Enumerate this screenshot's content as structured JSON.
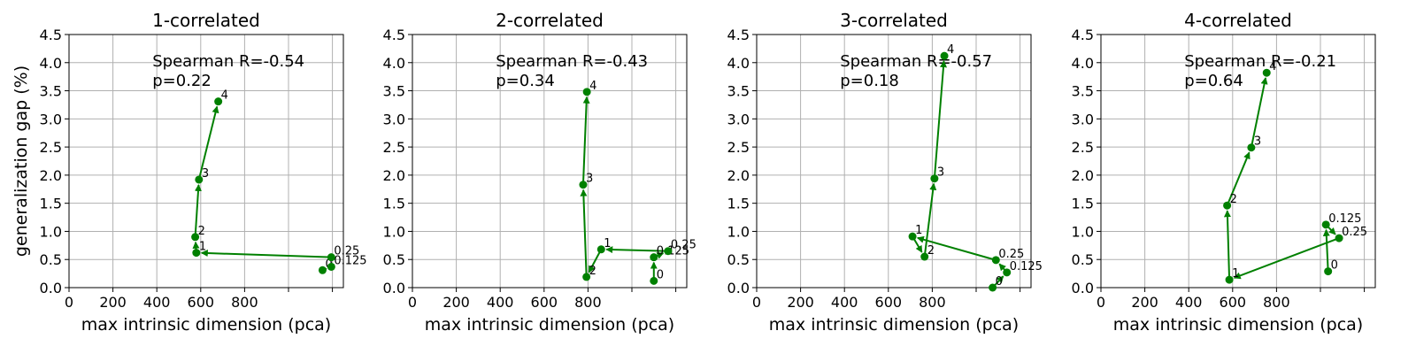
{
  "chart_data": [
    {
      "type": "line",
      "title": "1-correlated",
      "xlabel": "max intrinsic dimension (pca)",
      "ylabel": "generalization gap (%)",
      "xlim": [
        0,
        1250
      ],
      "ylim": [
        0,
        4.5
      ],
      "xticks": [
        0,
        200,
        400,
        600,
        800
      ],
      "yticks": [
        "0.0",
        "0.5",
        "1.0",
        "1.5",
        "2.0",
        "2.5",
        "3.0",
        "3.5",
        "4.0",
        "4.5"
      ],
      "grid": true,
      "color": "#008000",
      "annotation": [
        "Spearman R=-0.54",
        "p=0.22"
      ],
      "points": [
        {
          "label": "0",
          "x": 1155,
          "y": 0.31
        },
        {
          "label": "0.125",
          "x": 1195,
          "y": 0.37
        },
        {
          "label": "0.25",
          "x": 1195,
          "y": 0.54
        },
        {
          "label": "1",
          "x": 580,
          "y": 0.62
        },
        {
          "label": "2",
          "x": 575,
          "y": 0.9
        },
        {
          "label": "3",
          "x": 592,
          "y": 1.92
        },
        {
          "label": "4",
          "x": 680,
          "y": 3.31
        }
      ]
    },
    {
      "type": "line",
      "title": "2-correlated",
      "xlabel": "max intrinsic dimension (pca)",
      "ylabel": "",
      "xlim": [
        0,
        1250
      ],
      "ylim": [
        0,
        4.5
      ],
      "xticks": [
        0,
        200,
        400,
        600,
        800
      ],
      "yticks": [
        "0.0",
        "0.5",
        "1.0",
        "1.5",
        "2.0",
        "2.5",
        "3.0",
        "3.5",
        "4.0",
        "4.5"
      ],
      "grid": true,
      "color": "#008000",
      "annotation": [
        "Spearman R=-0.43",
        "p=0.34"
      ],
      "points": [
        {
          "label": "0",
          "x": 1100,
          "y": 0.12
        },
        {
          "label": "0.125",
          "x": 1100,
          "y": 0.54
        },
        {
          "label": "0.25",
          "x": 1165,
          "y": 0.65
        },
        {
          "label": "1",
          "x": 860,
          "y": 0.68
        },
        {
          "label": "2",
          "x": 793,
          "y": 0.19
        },
        {
          "label": "3",
          "x": 778,
          "y": 1.83
        },
        {
          "label": "4",
          "x": 795,
          "y": 3.48
        }
      ]
    },
    {
      "type": "line",
      "title": "3-correlated",
      "xlabel": "max intrinsic dimension (pca)",
      "ylabel": "",
      "xlim": [
        0,
        1250
      ],
      "ylim": [
        0,
        4.5
      ],
      "xticks": [
        0,
        200,
        400,
        600,
        800
      ],
      "yticks": [
        "0.0",
        "0.5",
        "1.0",
        "1.5",
        "2.0",
        "2.5",
        "3.0",
        "3.5",
        "4.0",
        "4.5"
      ],
      "grid": true,
      "color": "#008000",
      "annotation": [
        "Spearman R=-0.57",
        "p=0.18"
      ],
      "points": [
        {
          "label": "0",
          "x": 1075,
          "y": 0.0
        },
        {
          "label": "0.125",
          "x": 1140,
          "y": 0.27
        },
        {
          "label": "0.25",
          "x": 1090,
          "y": 0.49
        },
        {
          "label": "1",
          "x": 710,
          "y": 0.91
        },
        {
          "label": "2",
          "x": 765,
          "y": 0.55
        },
        {
          "label": "3",
          "x": 810,
          "y": 1.94
        },
        {
          "label": "4",
          "x": 855,
          "y": 4.12
        }
      ]
    },
    {
      "type": "line",
      "title": "4-correlated",
      "xlabel": "max intrinsic dimension (pca)",
      "ylabel": "",
      "xlim": [
        0,
        1250
      ],
      "ylim": [
        0,
        4.5
      ],
      "xticks": [
        0,
        200,
        400,
        600,
        800
      ],
      "yticks": [
        "0.0",
        "0.5",
        "1.0",
        "1.5",
        "2.0",
        "2.5",
        "3.0",
        "3.5",
        "4.0",
        "4.5"
      ],
      "grid": true,
      "color": "#008000",
      "annotation": [
        "Spearman R=-0.21",
        "p=0.64"
      ],
      "points": [
        {
          "label": "0",
          "x": 1035,
          "y": 0.29
        },
        {
          "label": "0.125",
          "x": 1025,
          "y": 1.12
        },
        {
          "label": "0.25",
          "x": 1085,
          "y": 0.88
        },
        {
          "label": "1",
          "x": 585,
          "y": 0.14
        },
        {
          "label": "2",
          "x": 575,
          "y": 1.46
        },
        {
          "label": "3",
          "x": 685,
          "y": 2.49
        },
        {
          "label": "4",
          "x": 755,
          "y": 3.82
        }
      ]
    }
  ]
}
